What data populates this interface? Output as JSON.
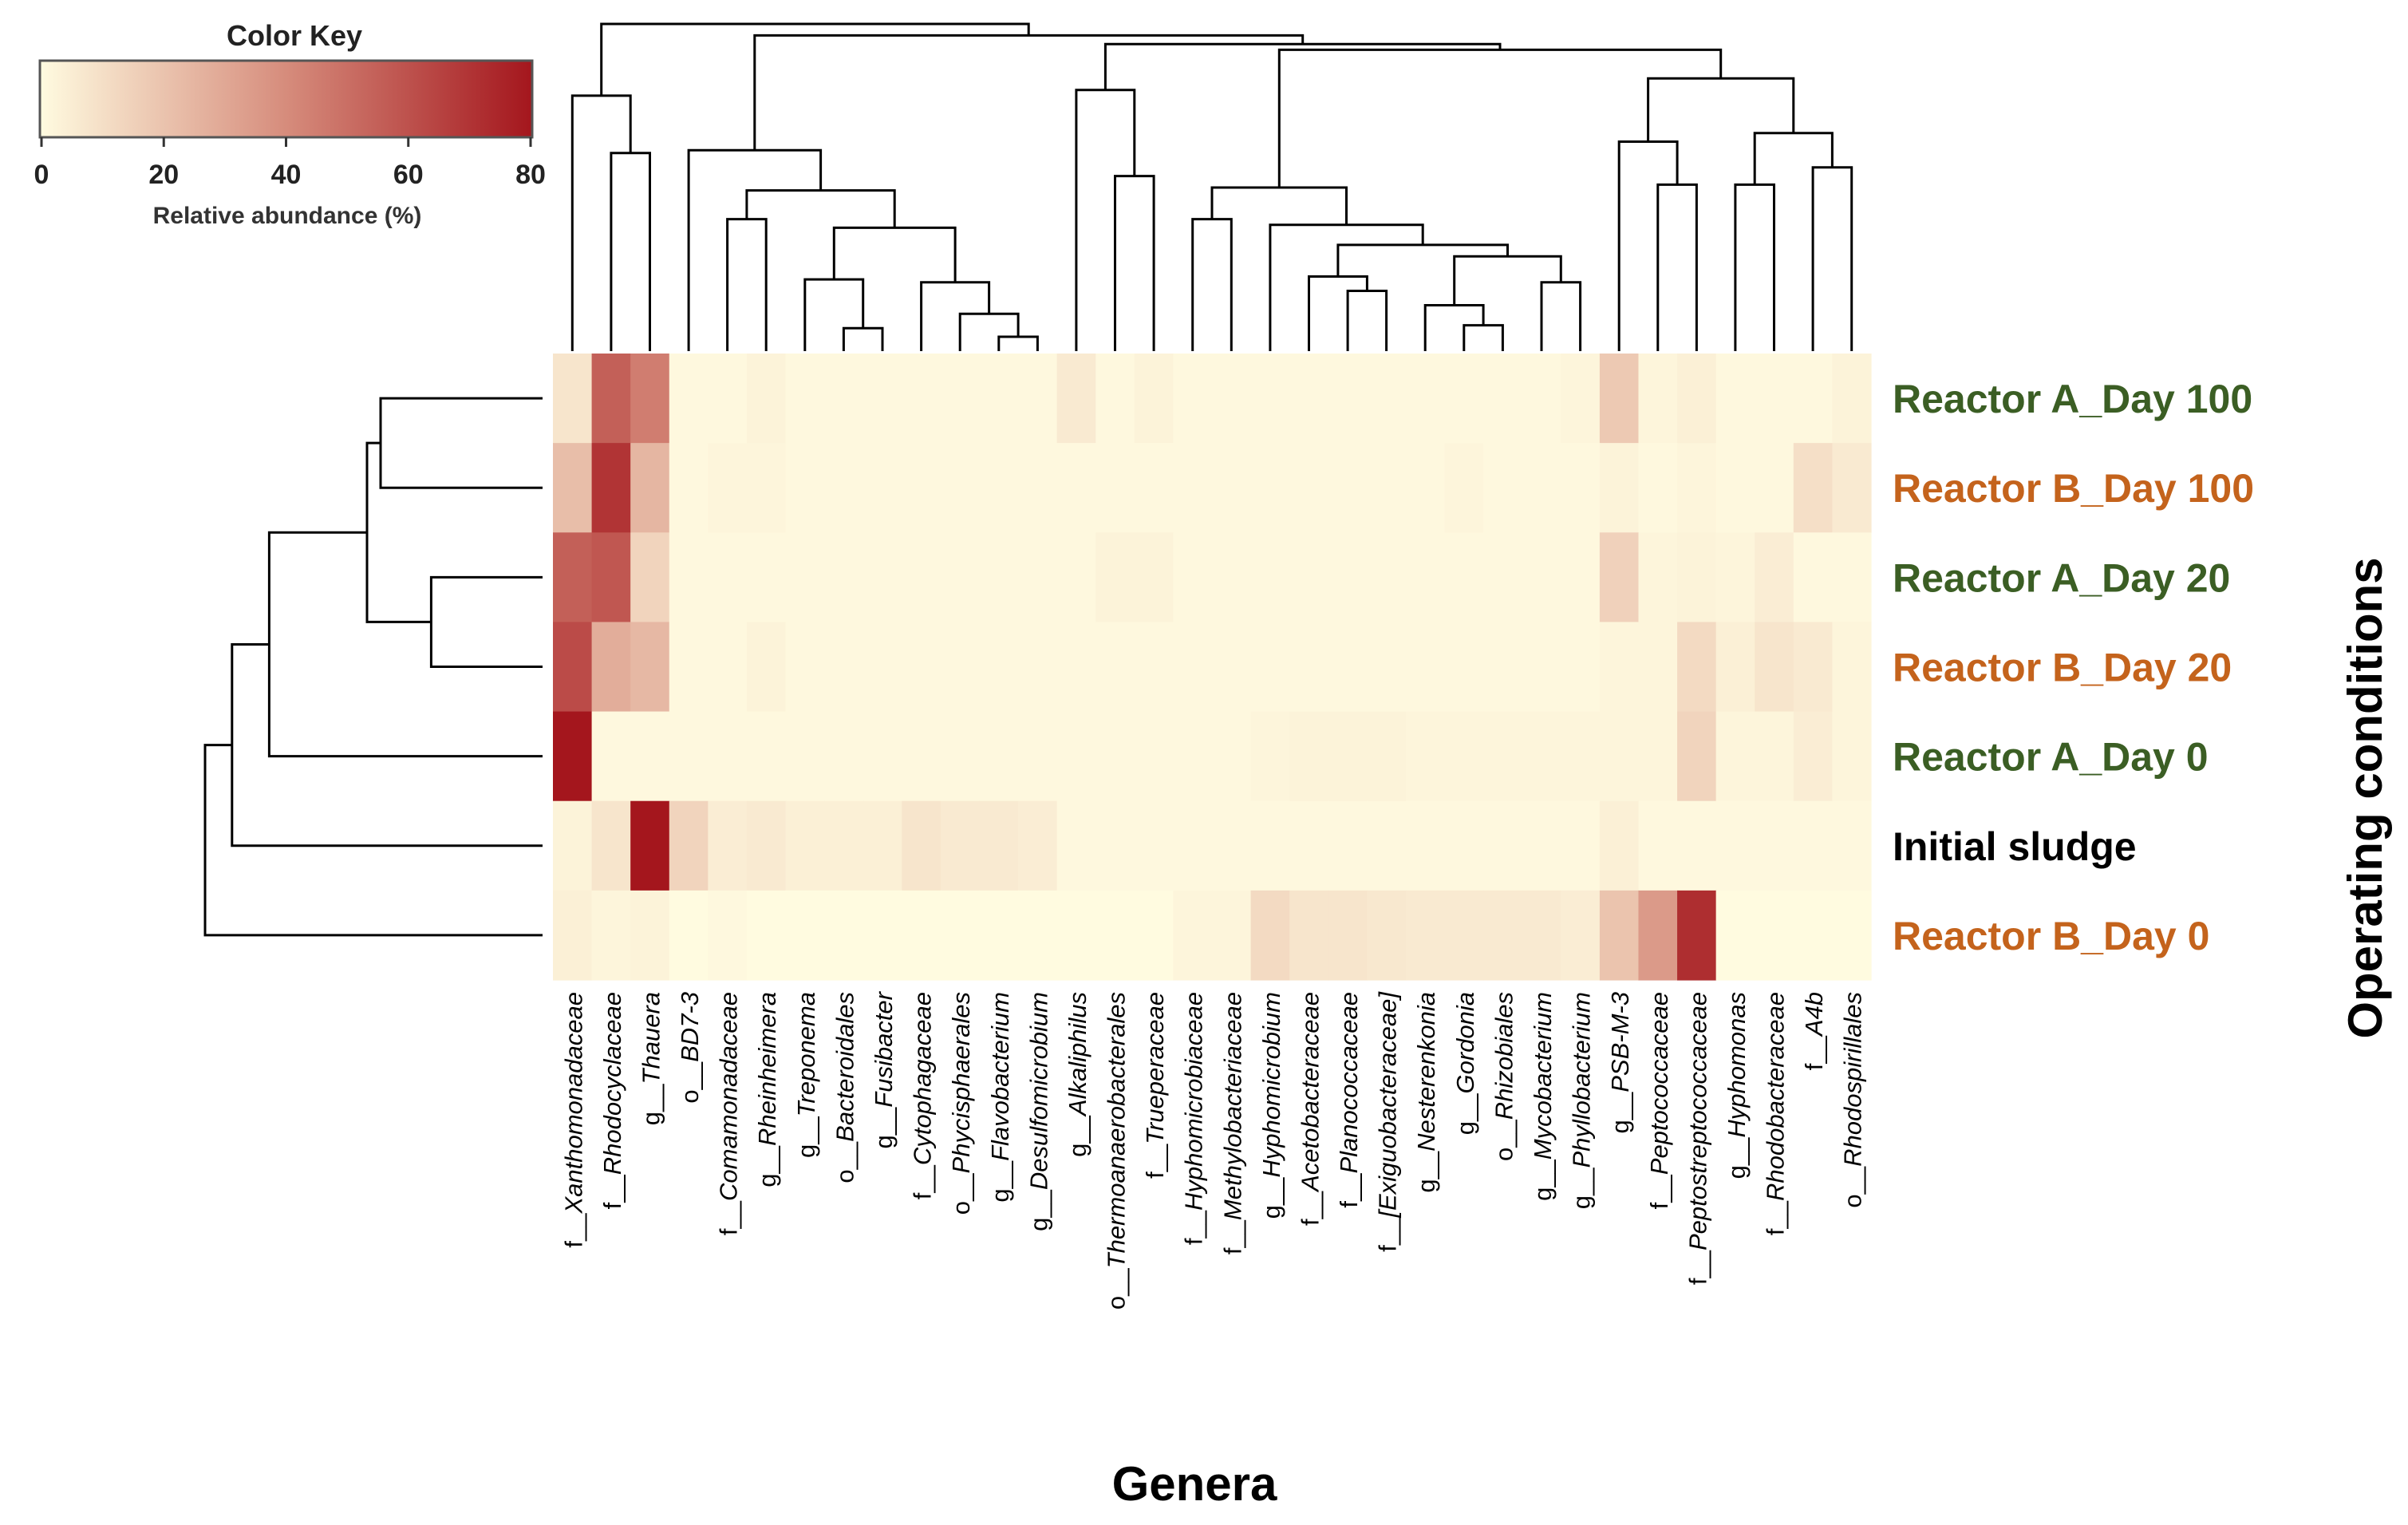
{
  "chart_data": {
    "type": "heatmap",
    "xlabel": "Genera",
    "ylabel": "Operating conditions",
    "color_key": {
      "title": "Color Key",
      "label": "Relative abundance (%)",
      "ticks": [
        "0",
        "20",
        "40",
        "60",
        "80"
      ],
      "range": [
        0,
        80
      ],
      "low_color": "#fffbe0",
      "high_color": "#a4161d"
    },
    "rows": [
      {
        "label": "Reactor A_Day 100",
        "group": "A"
      },
      {
        "label": "Reactor B_Day 100",
        "group": "B"
      },
      {
        "label": "Reactor A_Day 20",
        "group": "A"
      },
      {
        "label": "Reactor B_Day 20",
        "group": "B"
      },
      {
        "label": "Reactor A_Day 0",
        "group": "A"
      },
      {
        "label": "Initial sludge",
        "group": "I"
      },
      {
        "label": "Reactor B_Day 0",
        "group": "B"
      }
    ],
    "row_colors": {
      "A": "#3b5e24",
      "B": "#c4631c",
      "I": "#000000"
    },
    "columns": [
      {
        "prefix": "f__",
        "name": "Xanthomonadaceae"
      },
      {
        "prefix": "f__",
        "name": "Rhodocyclaceae"
      },
      {
        "prefix": "g__",
        "name": "Thauera"
      },
      {
        "prefix": "o__",
        "name": "BD7-3"
      },
      {
        "prefix": "f__",
        "name": "Comamonadaceae"
      },
      {
        "prefix": "g__",
        "name": "Rheinheimera"
      },
      {
        "prefix": "g__",
        "name": "Treponema"
      },
      {
        "prefix": "o__",
        "name": "Bacteroidales"
      },
      {
        "prefix": "g__",
        "name": "Fusibacter"
      },
      {
        "prefix": "f__",
        "name": "Cytophagaceae"
      },
      {
        "prefix": "o__",
        "name": "Phycisphaerales"
      },
      {
        "prefix": "g__",
        "name": "Flavobacterium"
      },
      {
        "prefix": "g__",
        "name": "Desulfomicrobium"
      },
      {
        "prefix": "g__",
        "name": "Alkaliphilus"
      },
      {
        "prefix": "o__",
        "name": "Thermoanaerobacterales"
      },
      {
        "prefix": "f__",
        "name": "Trueperaceae"
      },
      {
        "prefix": "f__",
        "name": "Hyphomicrobiaceae"
      },
      {
        "prefix": "f__",
        "name": "Methylobacteriaceae"
      },
      {
        "prefix": "g__",
        "name": "Hyphomicrobium"
      },
      {
        "prefix": "f__",
        "name": "Acetobacteraceae"
      },
      {
        "prefix": "f__",
        "name": "Planococcaceae"
      },
      {
        "prefix": "f__",
        "name": "[Exiguobacteraceae]"
      },
      {
        "prefix": "g__",
        "name": "Nesterenkonia"
      },
      {
        "prefix": "g__",
        "name": "Gordonia"
      },
      {
        "prefix": "o__",
        "name": "Rhizobiales"
      },
      {
        "prefix": "g__",
        "name": "Mycobacterium"
      },
      {
        "prefix": "g__",
        "name": "Phyllobacterium"
      },
      {
        "prefix": "g__",
        "name": "PSB-M-3"
      },
      {
        "prefix": "f__",
        "name": "Peptococcaceae"
      },
      {
        "prefix": "f__",
        "name": "Peptostreptococcaceae"
      },
      {
        "prefix": "g__",
        "name": "Hyphomonas"
      },
      {
        "prefix": "f__",
        "name": "Rhodobacteraceae"
      },
      {
        "prefix": "f__",
        "name": "A4b"
      },
      {
        "prefix": "o__",
        "name": "Rhodospirillales"
      }
    ],
    "values": [
      [
        8,
        55,
        45,
        1,
        1,
        3,
        1,
        1,
        1,
        1,
        1,
        1,
        1,
        6,
        1,
        3,
        1,
        1,
        1,
        1,
        1,
        1,
        1,
        1,
        1,
        1,
        2,
        18,
        2,
        4,
        1,
        1,
        1,
        3
      ],
      [
        22,
        70,
        25,
        1,
        2,
        2,
        1,
        1,
        1,
        1,
        1,
        1,
        1,
        1,
        1,
        1,
        1,
        1,
        1,
        1,
        1,
        1,
        1,
        2,
        1,
        1,
        1,
        3,
        1,
        2,
        1,
        1,
        10,
        6
      ],
      [
        55,
        58,
        14,
        1,
        1,
        1,
        1,
        1,
        1,
        1,
        1,
        1,
        1,
        1,
        3,
        3,
        1,
        1,
        1,
        1,
        1,
        1,
        1,
        1,
        1,
        1,
        1,
        15,
        2,
        3,
        2,
        5,
        1,
        1
      ],
      [
        62,
        28,
        24,
        1,
        1,
        3,
        1,
        1,
        1,
        1,
        1,
        1,
        1,
        1,
        1,
        1,
        1,
        1,
        1,
        1,
        1,
        1,
        1,
        1,
        1,
        1,
        1,
        2,
        2,
        12,
        4,
        8,
        6,
        2
      ],
      [
        80,
        1,
        1,
        1,
        1,
        1,
        1,
        1,
        1,
        1,
        1,
        1,
        1,
        1,
        1,
        1,
        1,
        1,
        2,
        3,
        3,
        3,
        2,
        2,
        2,
        2,
        2,
        2,
        2,
        14,
        2,
        2,
        5,
        2
      ],
      [
        3,
        8,
        85,
        14,
        5,
        6,
        4,
        4,
        4,
        8,
        6,
        6,
        5,
        1,
        1,
        1,
        1,
        1,
        1,
        1,
        1,
        1,
        1,
        1,
        1,
        1,
        1,
        4,
        1,
        1,
        1,
        1,
        1,
        1
      ],
      [
        4,
        2,
        3,
        0,
        1,
        0,
        0,
        0,
        0,
        0,
        0,
        0,
        0,
        0,
        0,
        0,
        2,
        2,
        12,
        8,
        8,
        7,
        6,
        6,
        6,
        6,
        5,
        20,
        35,
        72,
        0,
        0,
        0,
        0
      ]
    ],
    "row_dendrogram": [
      {
        "a": 0,
        "b": 1,
        "h": 0.48
      },
      {
        "a": 2,
        "b": 3,
        "h": 0.33
      },
      {
        "a": "m0",
        "b": "m1",
        "h": 0.52
      },
      {
        "a": "m2",
        "b": 4,
        "h": 0.81
      },
      {
        "a": "m3",
        "b": 5,
        "h": 0.92
      },
      {
        "a": "m4",
        "b": 6,
        "h": 1.0
      }
    ],
    "col_dendrogram": [
      {
        "a": 1,
        "b": 2,
        "h": 0.69
      },
      {
        "a": 0,
        "b": "m0",
        "h": 0.89
      },
      {
        "a": 11,
        "b": 12,
        "h": 0.05
      },
      {
        "a": 10,
        "b": "m2",
        "h": 0.13
      },
      {
        "a": 9,
        "b": "m3",
        "h": 0.24
      },
      {
        "a": 7,
        "b": 8,
        "h": 0.08
      },
      {
        "a": 6,
        "b": "m5",
        "h": 0.25
      },
      {
        "a": "m6",
        "b": "m4",
        "h": 0.43
      },
      {
        "a": 4,
        "b": 5,
        "h": 0.46
      },
      {
        "a": "m8",
        "b": "m7",
        "h": 0.56
      },
      {
        "a": 3,
        "b": "m9",
        "h": 0.7
      },
      {
        "a": 14,
        "b": 15,
        "h": 0.61
      },
      {
        "a": 13,
        "b": "m11",
        "h": 0.91
      },
      {
        "a": 23,
        "b": 24,
        "h": 0.09
      },
      {
        "a": 22,
        "b": "m13",
        "h": 0.16
      },
      {
        "a": 25,
        "b": 26,
        "h": 0.24
      },
      {
        "a": "m14",
        "b": "m15",
        "h": 0.33
      },
      {
        "a": 20,
        "b": 21,
        "h": 0.21
      },
      {
        "a": 19,
        "b": "m17",
        "h": 0.26
      },
      {
        "a": "m18",
        "b": "m16",
        "h": 0.37
      },
      {
        "a": 16,
        "b": 17,
        "h": 0.46
      },
      {
        "a": 18,
        "b": "m19",
        "h": 0.44
      },
      {
        "a": "m20",
        "b": "m21",
        "h": 0.57
      },
      {
        "a": 28,
        "b": 29,
        "h": 0.58
      },
      {
        "a": 27,
        "b": "m23",
        "h": 0.73
      },
      {
        "a": 32,
        "b": 33,
        "h": 0.64
      },
      {
        "a": 31,
        "b": 30,
        "h": 0.58
      },
      {
        "a": "m26",
        "b": "m25",
        "h": 0.76
      },
      {
        "a": "m24",
        "b": "m27",
        "h": 0.95
      },
      {
        "a": "m22",
        "b": "m28",
        "h": 1.05
      },
      {
        "a": "m12",
        "b": "m29",
        "h": 1.07
      },
      {
        "a": "m10",
        "b": "m30",
        "h": 1.1
      },
      {
        "a": "m1",
        "b": "m31",
        "h": 1.14
      }
    ]
  }
}
